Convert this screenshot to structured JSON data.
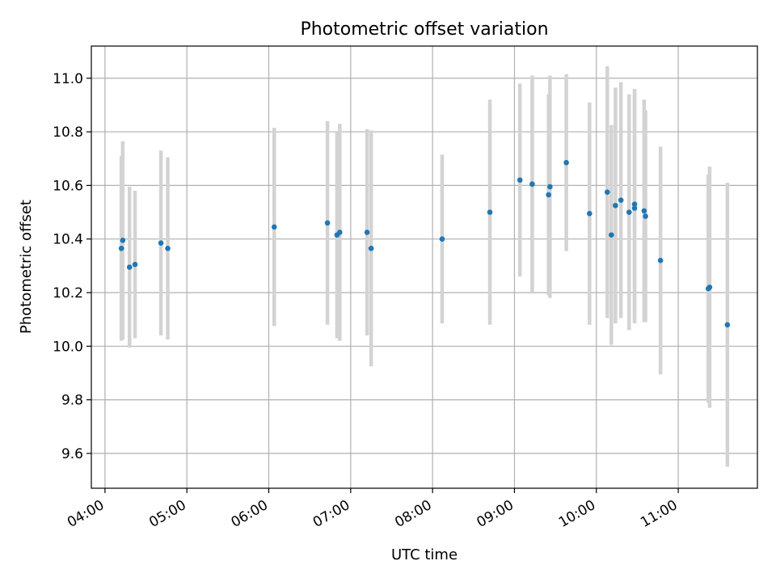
{
  "chart_data": {
    "type": "scatter",
    "title": "Photometric offset variation",
    "xlabel": "UTC time",
    "ylabel": "Photometric offset",
    "x_ticks": [
      "04:00",
      "05:00",
      "06:00",
      "07:00",
      "08:00",
      "09:00",
      "10:00",
      "11:00"
    ],
    "y_ticks": [
      "9.6",
      "9.8",
      "10.0",
      "10.2",
      "10.4",
      "10.6",
      "10.8",
      "11.0"
    ],
    "xlim": [
      "03:50",
      "11:58"
    ],
    "ylim": [
      9.47,
      11.12
    ],
    "grid": true,
    "point_color": "#1f77b4",
    "errorbar_color": "#d3d3d3",
    "points": [
      {
        "x": "04:12",
        "y": 10.365,
        "err": 0.345
      },
      {
        "x": "04:13",
        "y": 10.395,
        "err": 0.37
      },
      {
        "x": "04:18",
        "y": 10.295,
        "err": 0.3
      },
      {
        "x": "04:22",
        "y": 10.305,
        "err": 0.275
      },
      {
        "x": "04:41",
        "y": 10.385,
        "err": 0.345
      },
      {
        "x": "04:46",
        "y": 10.365,
        "err": 0.34
      },
      {
        "x": "06:04",
        "y": 10.445,
        "err": 0.37
      },
      {
        "x": "06:43",
        "y": 10.46,
        "err": 0.38
      },
      {
        "x": "06:50",
        "y": 10.415,
        "err": 0.385
      },
      {
        "x": "06:52",
        "y": 10.425,
        "err": 0.405
      },
      {
        "x": "07:12",
        "y": 10.425,
        "err": 0.385
      },
      {
        "x": "07:15",
        "y": 10.365,
        "err": 0.44
      },
      {
        "x": "08:07",
        "y": 10.4,
        "err": 0.315
      },
      {
        "x": "08:42",
        "y": 10.5,
        "err": 0.42
      },
      {
        "x": "09:04",
        "y": 10.62,
        "err": 0.36
      },
      {
        "x": "09:13",
        "y": 10.605,
        "err": 0.405
      },
      {
        "x": "09:25",
        "y": 10.565,
        "err": 0.375
      },
      {
        "x": "09:26",
        "y": 10.595,
        "err": 0.415
      },
      {
        "x": "09:38",
        "y": 10.685,
        "err": 0.33
      },
      {
        "x": "09:55",
        "y": 10.495,
        "err": 0.415
      },
      {
        "x": "10:08",
        "y": 10.575,
        "err": 0.47
      },
      {
        "x": "10:11",
        "y": 10.415,
        "err": 0.41
      },
      {
        "x": "10:14",
        "y": 10.525,
        "err": 0.44
      },
      {
        "x": "10:18",
        "y": 10.545,
        "err": 0.44
      },
      {
        "x": "10:24",
        "y": 10.5,
        "err": 0.44
      },
      {
        "x": "10:28",
        "y": 10.515,
        "err": 0.43
      },
      {
        "x": "10:28",
        "y": 10.53,
        "err": 0.43
      },
      {
        "x": "10:35",
        "y": 10.505,
        "err": 0.415
      },
      {
        "x": "10:36",
        "y": 10.485,
        "err": 0.395
      },
      {
        "x": "10:47",
        "y": 10.32,
        "err": 0.425
      },
      {
        "x": "11:22",
        "y": 10.215,
        "err": 0.425
      },
      {
        "x": "11:23",
        "y": 10.22,
        "err": 0.45
      },
      {
        "x": "11:36",
        "y": 10.08,
        "err": 0.53
      }
    ]
  }
}
